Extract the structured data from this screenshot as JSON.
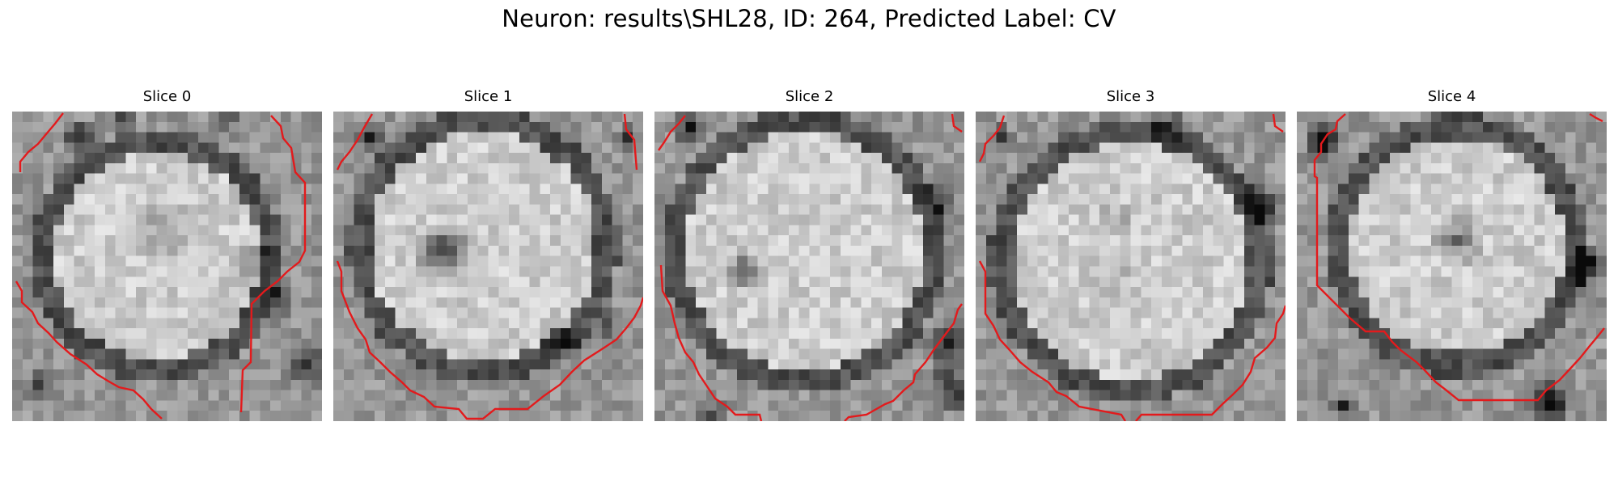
{
  "figure": {
    "title": "Neuron: results\\SHL28, ID: 264, Predicted Label: CV",
    "boundary_color": "#e31a1c",
    "colormap": "grayscale"
  },
  "panels": [
    {
      "label": "Slice 0"
    },
    {
      "label": "Slice 1"
    },
    {
      "label": "Slice 2"
    },
    {
      "label": "Slice 3"
    },
    {
      "label": "Slice 4"
    }
  ]
}
